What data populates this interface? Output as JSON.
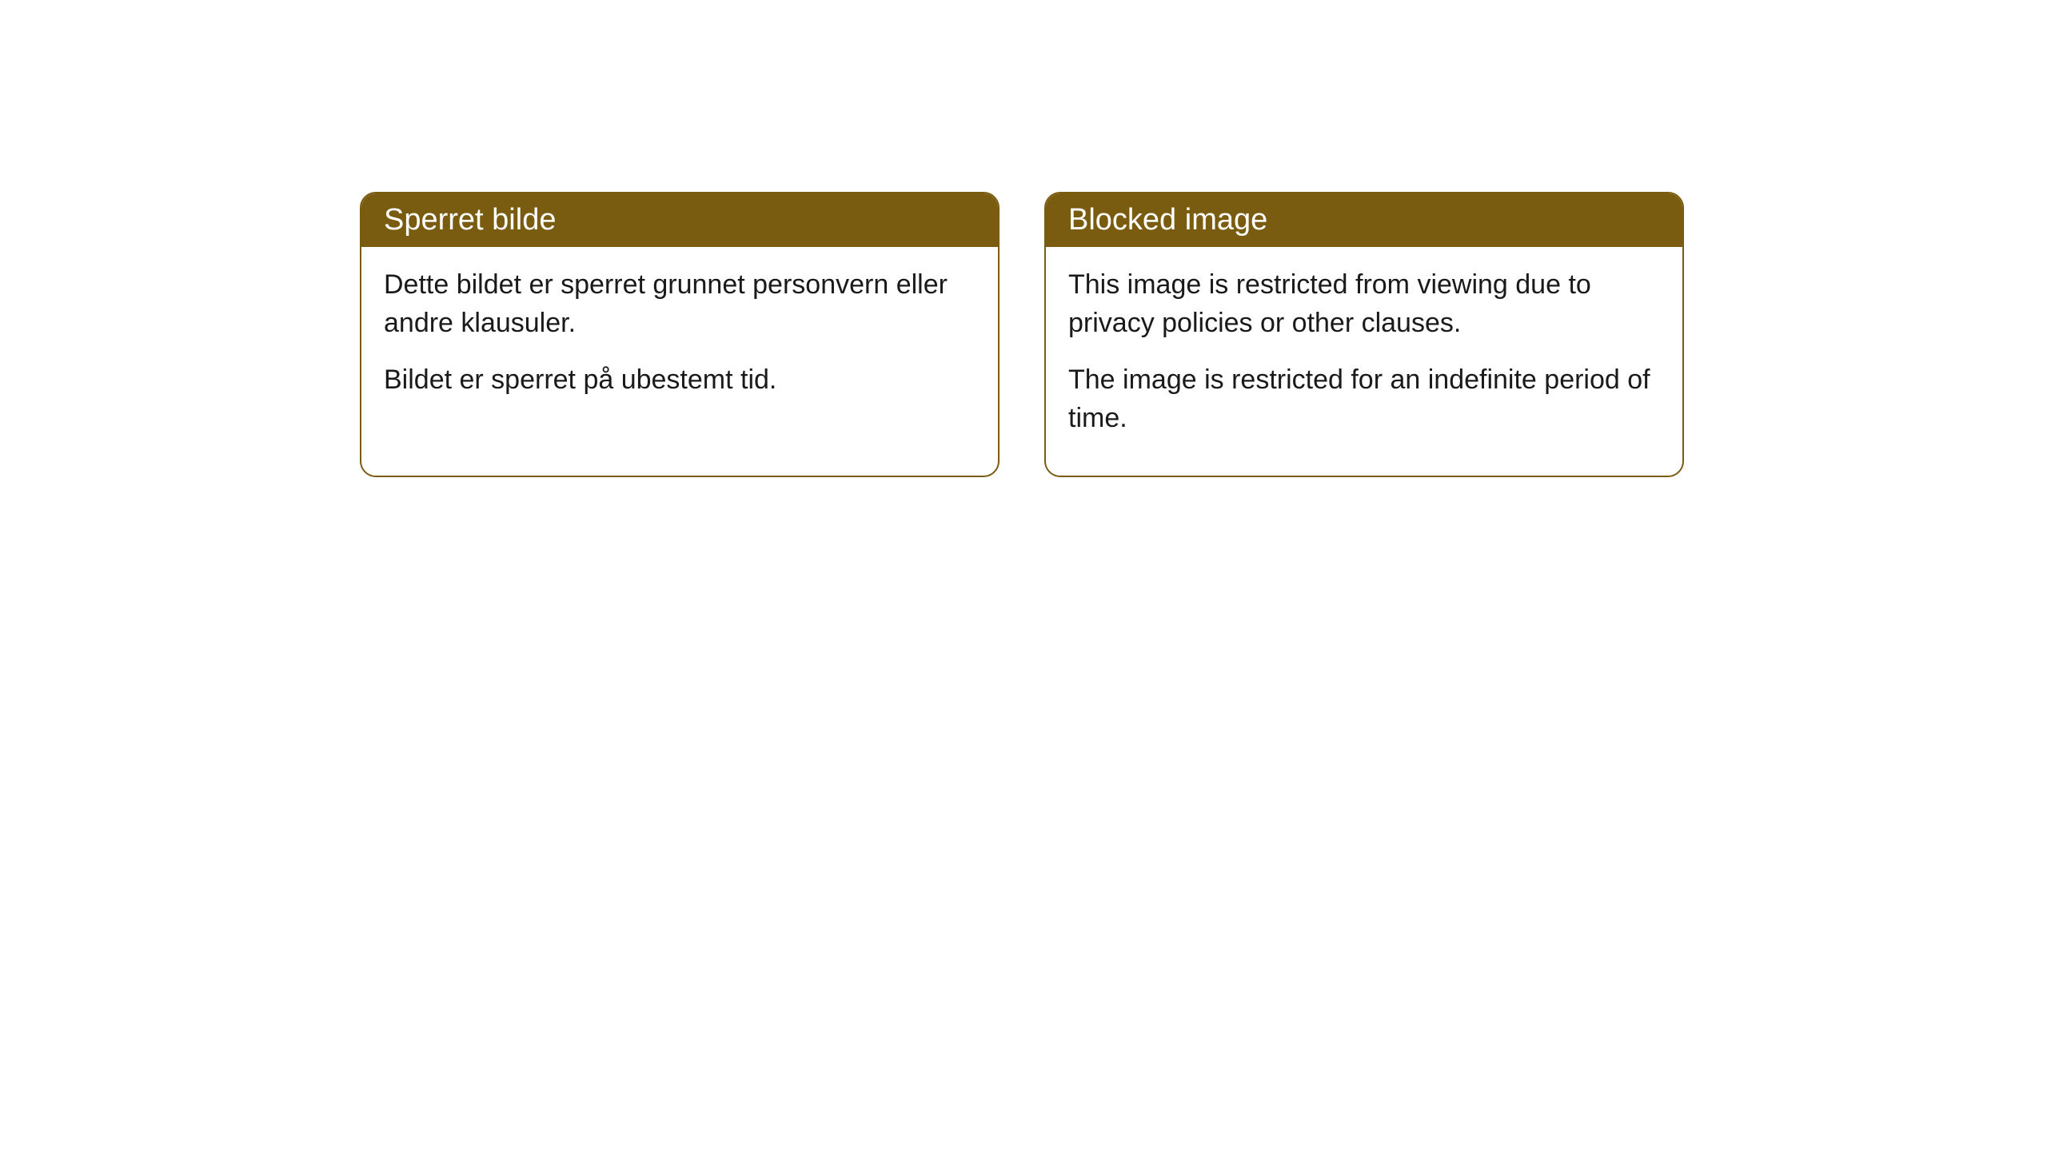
{
  "cards": [
    {
      "title": "Sperret bilde",
      "paragraph1": "Dette bildet er sperret grunnet personvern eller andre klausuler.",
      "paragraph2": "Bildet er sperret på ubestemt tid."
    },
    {
      "title": "Blocked image",
      "paragraph1": "This image is restricted from viewing due to privacy policies or other clauses.",
      "paragraph2": "The image is restricted for an indefinite period of time."
    }
  ],
  "styling": {
    "header_background": "#7a5c10",
    "header_text_color": "#ffffff",
    "card_border_color": "#7a5c10",
    "card_background": "#ffffff",
    "body_text_color": "#1a1a1a",
    "border_radius": 20,
    "title_fontsize": 38,
    "body_fontsize": 34
  }
}
